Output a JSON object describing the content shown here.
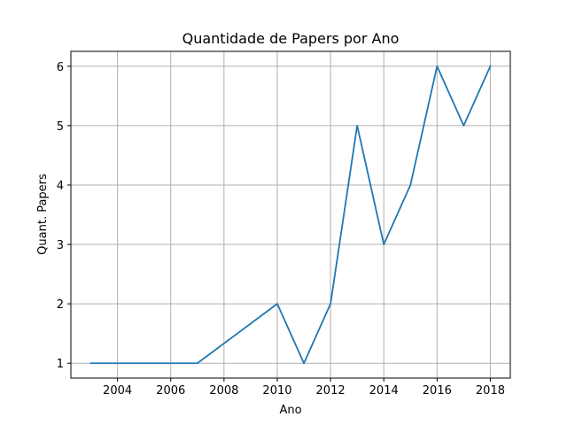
{
  "chart_data": {
    "type": "line",
    "title": "Quantidade de Papers por Ano",
    "xlabel": "Ano",
    "ylabel": "Quant. Papers",
    "x": [
      2003,
      2004,
      2005,
      2006,
      2007,
      2008,
      2009,
      2010,
      2011,
      2012,
      2013,
      2014,
      2015,
      2016,
      2017,
      2018
    ],
    "series": [
      {
        "values": [
          1,
          1,
          1,
          1,
          1,
          null,
          null,
          2,
          1,
          2,
          5,
          3,
          4,
          6,
          5,
          6
        ],
        "color": "#1f77b4"
      }
    ],
    "xlim": [
      2002.25,
      2018.75
    ],
    "ylim": [
      0.75,
      6.25
    ],
    "xticks": [
      2004,
      2006,
      2008,
      2010,
      2012,
      2014,
      2016,
      2018
    ],
    "xtick_labels": [
      "2004",
      "2006",
      "2008",
      "2010",
      "2012",
      "2014",
      "2016",
      "2018"
    ],
    "yticks": [
      1,
      2,
      3,
      4,
      5,
      6
    ],
    "ytick_labels": [
      "1",
      "2",
      "3",
      "4",
      "5",
      "6"
    ],
    "grid": true,
    "legend": "none"
  }
}
